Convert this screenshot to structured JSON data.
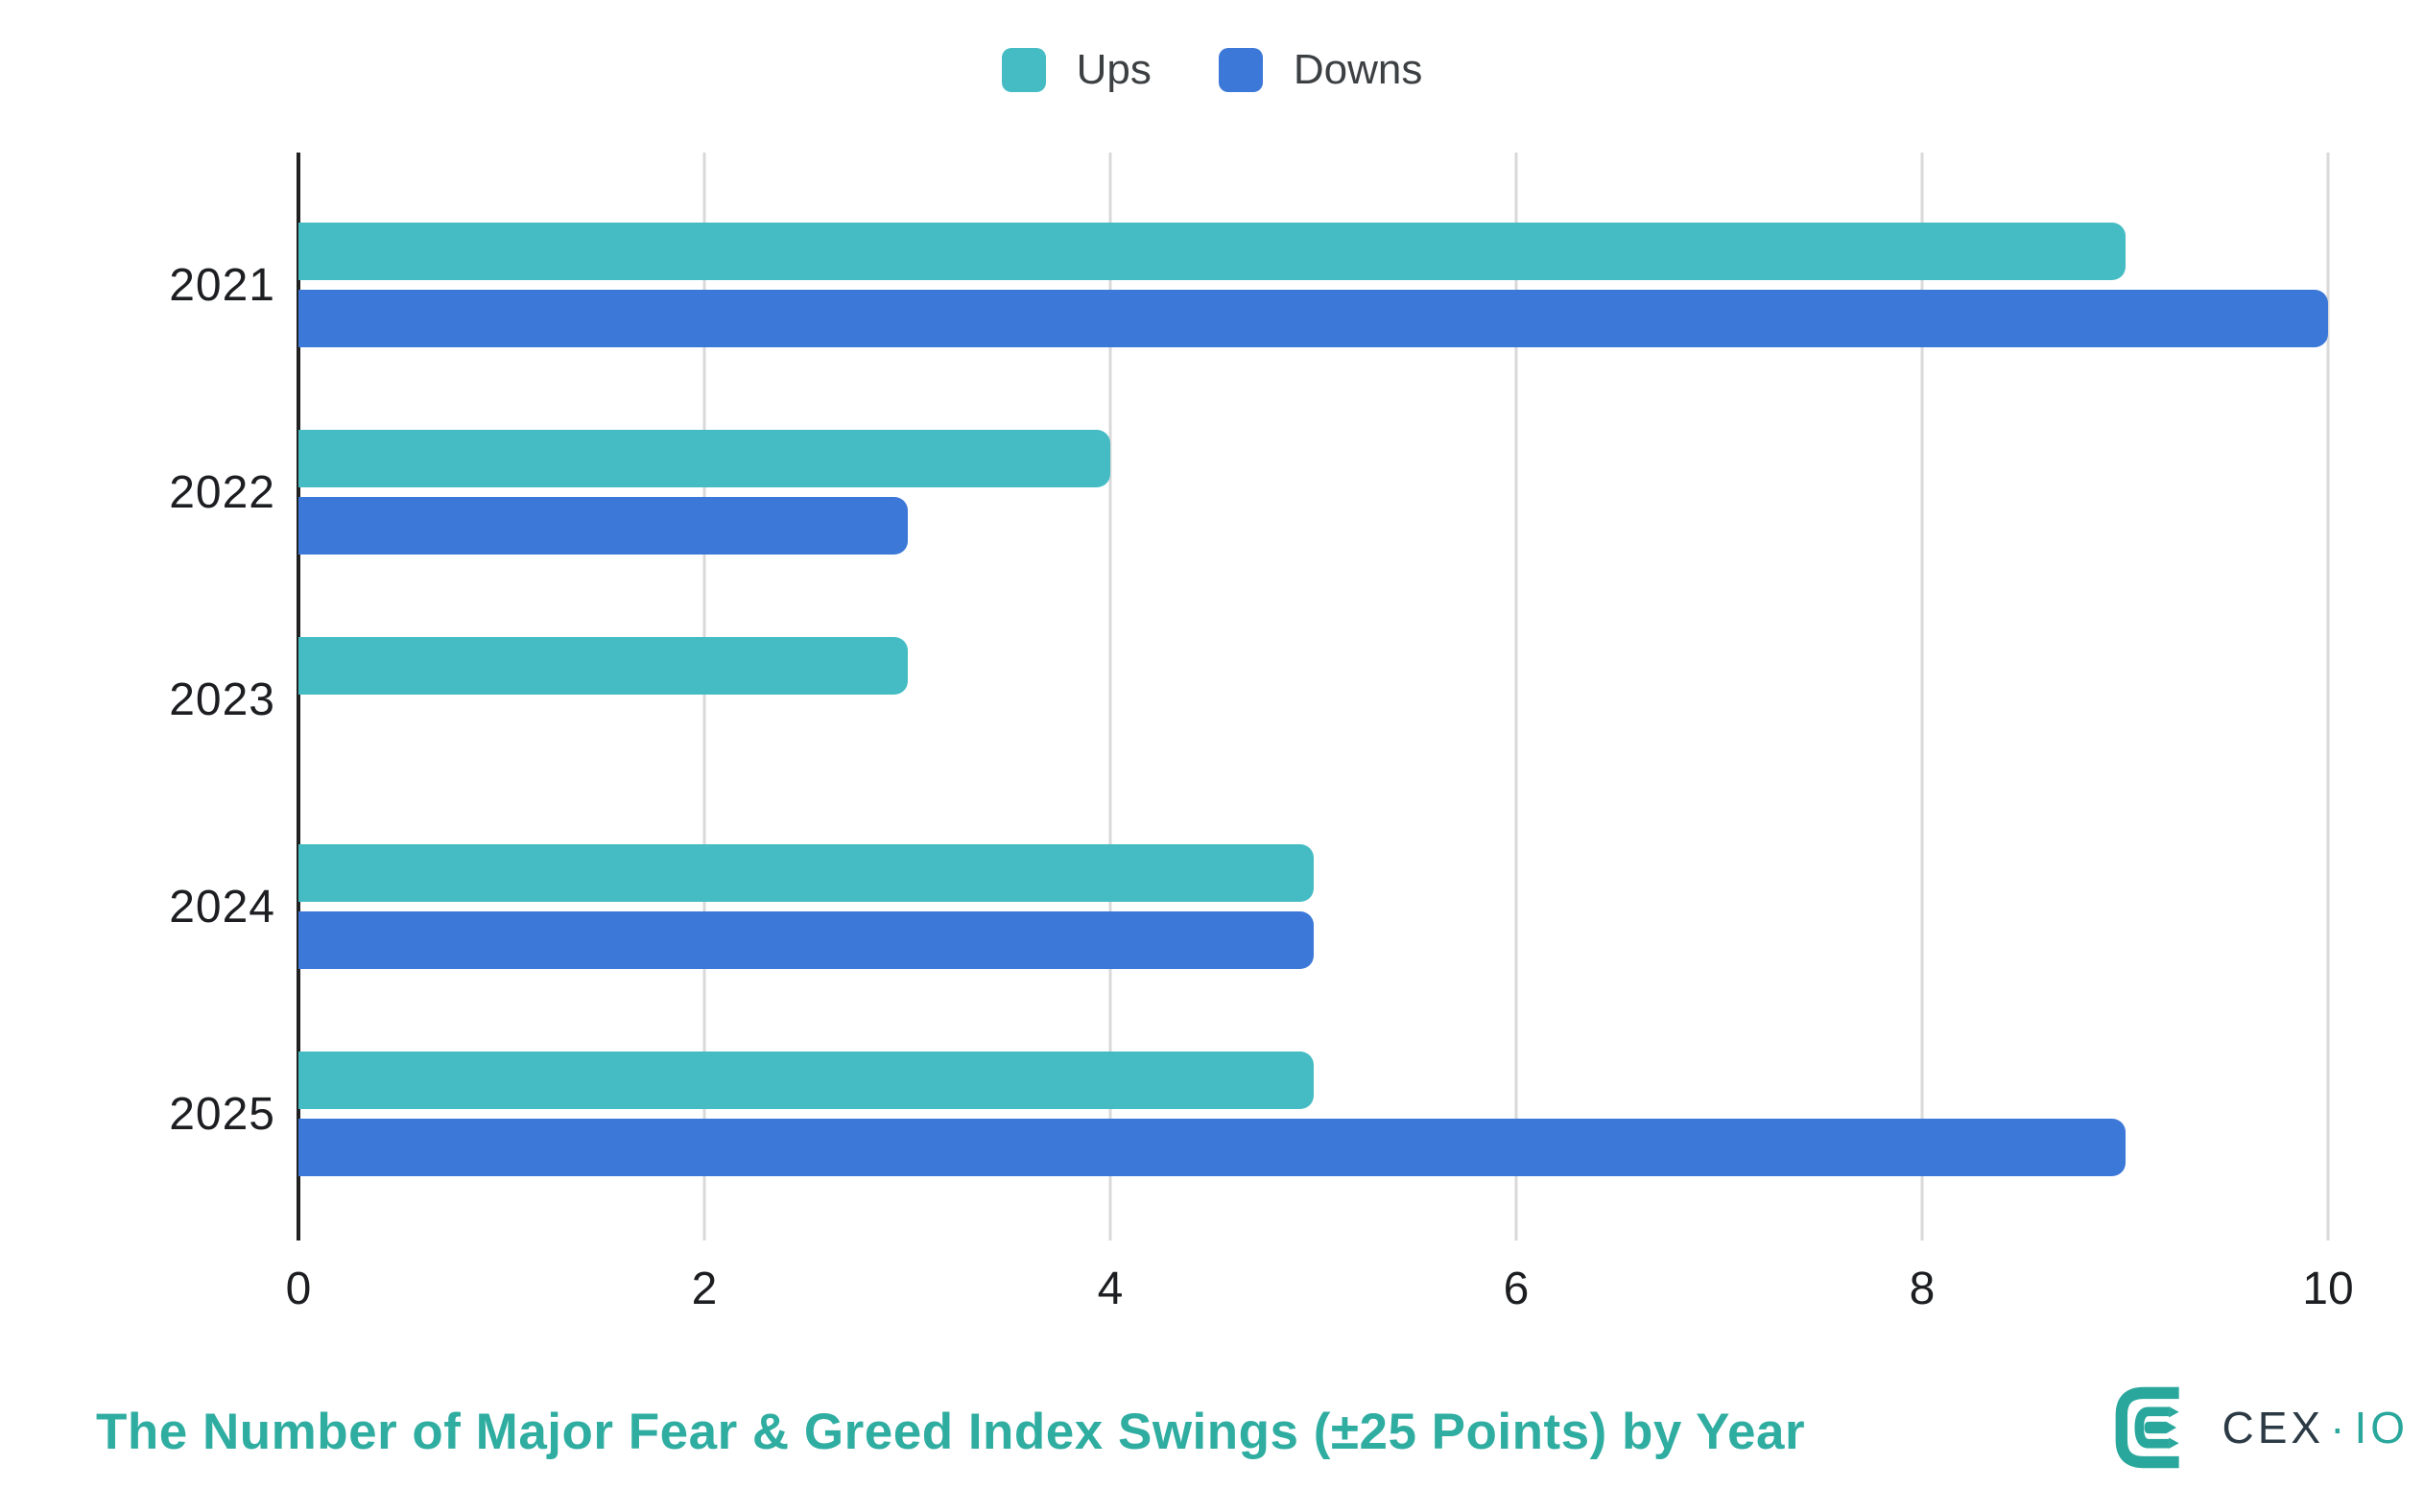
{
  "legend": {
    "items": [
      {
        "label": "Ups",
        "color": "#45bcc4"
      },
      {
        "label": "Downs",
        "color": "#3c78d8"
      }
    ]
  },
  "chart_data": {
    "type": "bar",
    "orientation": "horizontal",
    "title": "The Number of Major Fear & Greed Index Swings (±25 Points) by Year",
    "categories": [
      "2021",
      "2022",
      "2023",
      "2024",
      "2025"
    ],
    "series": [
      {
        "name": "Ups",
        "color": "#45bcc4",
        "values": [
          9,
          4,
          3,
          5,
          5
        ]
      },
      {
        "name": "Downs",
        "color": "#3c78d8",
        "values": [
          10,
          3,
          0,
          5,
          9
        ]
      }
    ],
    "xlim": [
      0,
      10
    ],
    "x_ticks": [
      "0",
      "2",
      "4",
      "6",
      "8",
      "10"
    ],
    "grid": true,
    "legend_position": "top",
    "axis_color": "#212121",
    "gridline_color": "#d9d9d9"
  },
  "title": {
    "text": "The Number of Major Fear & Greed Index Swings (±25 Points) by Year",
    "color": "#2fada1"
  },
  "logo": {
    "text_primary": "CEX",
    "separator": "·",
    "text_secondary": "IO",
    "brand_color": "#2aa79c",
    "dark_color": "#2b3a45"
  }
}
